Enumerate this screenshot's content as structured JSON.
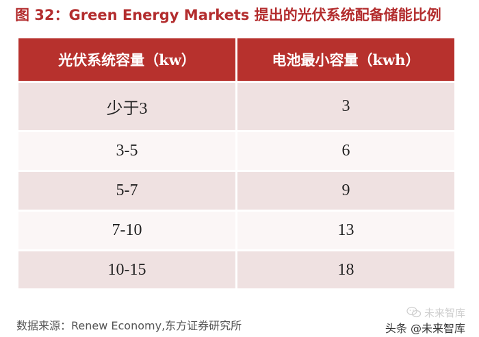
{
  "figure": {
    "title": "图 32：Green Energy Markets 提出的光伏系统配备储能比例"
  },
  "table": {
    "headers": [
      "光伏系统容量（kw）",
      "电池最小容量（kwh）"
    ],
    "rows": [
      [
        "少于3",
        "3"
      ],
      [
        "3-5",
        "6"
      ],
      [
        "5-7",
        "9"
      ],
      [
        "7-10",
        "13"
      ],
      [
        "10-15",
        "18"
      ]
    ]
  },
  "source": "数据来源：Renew Economy,东方证券研究所",
  "watermark": {
    "faint_text": "未来智库",
    "main_text": "头条 @未来智库"
  },
  "colors": {
    "title": "#b32d2e",
    "header_bg": "#b7312d",
    "row_shaded": "#efe1e1",
    "row_light": "#fbf6f6"
  },
  "icons": {
    "watermark": "wechat-bubble-icon"
  }
}
